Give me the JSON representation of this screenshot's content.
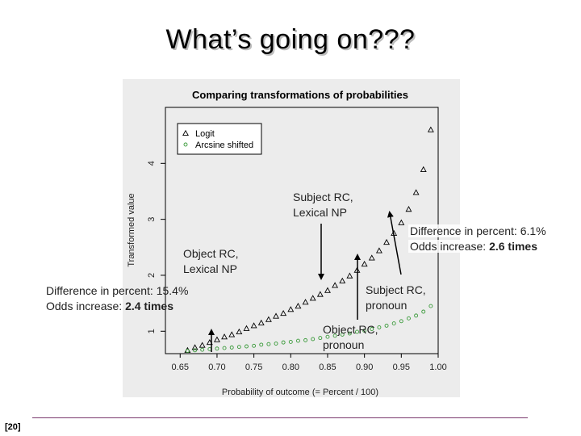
{
  "slide": {
    "title": "What’s going on???",
    "page_number": "[20]"
  },
  "chart_data": {
    "type": "scatter",
    "title": "Comparing transformations of probabilities",
    "xlabel": "Probability of outcome (= Percent / 100)",
    "ylabel": "Transformed value",
    "xlim": [
      0.63,
      1.0
    ],
    "ylim": [
      0.6,
      5.0
    ],
    "x_ticks": [
      "0.65",
      "0.70",
      "0.75",
      "0.80",
      "0.85",
      "0.90",
      "0.95",
      "1.00"
    ],
    "y_ticks": [
      "1",
      "2",
      "3",
      "4"
    ],
    "legend": {
      "position": "top-left",
      "entries": [
        "Logit",
        "Arcsine shifted"
      ]
    },
    "grid": false,
    "series": [
      {
        "name": "Logit",
        "marker": "triangle",
        "color": "#000000",
        "x": [
          0.66,
          0.67,
          0.68,
          0.69,
          0.7,
          0.71,
          0.72,
          0.73,
          0.74,
          0.75,
          0.76,
          0.77,
          0.78,
          0.79,
          0.8,
          0.81,
          0.82,
          0.83,
          0.84,
          0.85,
          0.86,
          0.87,
          0.88,
          0.89,
          0.9,
          0.91,
          0.92,
          0.93,
          0.94,
          0.95,
          0.96,
          0.97,
          0.98,
          0.99
        ],
        "y": [
          0.66,
          0.71,
          0.75,
          0.8,
          0.85,
          0.9,
          0.94,
          0.99,
          1.05,
          1.1,
          1.15,
          1.21,
          1.27,
          1.32,
          1.39,
          1.45,
          1.52,
          1.59,
          1.66,
          1.73,
          1.82,
          1.9,
          1.99,
          2.09,
          2.2,
          2.31,
          2.44,
          2.59,
          2.75,
          2.94,
          3.18,
          3.48,
          3.89,
          4.6
        ]
      },
      {
        "name": "Arcsine shifted",
        "marker": "circle",
        "color": "#3a9a3a",
        "x": [
          0.66,
          0.67,
          0.68,
          0.69,
          0.7,
          0.71,
          0.72,
          0.73,
          0.74,
          0.75,
          0.76,
          0.77,
          0.78,
          0.79,
          0.8,
          0.81,
          0.82,
          0.83,
          0.84,
          0.85,
          0.86,
          0.87,
          0.88,
          0.89,
          0.9,
          0.91,
          0.92,
          0.93,
          0.94,
          0.95,
          0.96,
          0.97,
          0.98,
          0.99
        ],
        "y": [
          0.65,
          0.66,
          0.67,
          0.68,
          0.69,
          0.7,
          0.71,
          0.72,
          0.73,
          0.74,
          0.76,
          0.77,
          0.78,
          0.8,
          0.81,
          0.83,
          0.84,
          0.86,
          0.88,
          0.9,
          0.92,
          0.94,
          0.96,
          0.99,
          1.01,
          1.04,
          1.07,
          1.1,
          1.14,
          1.18,
          1.23,
          1.28,
          1.35,
          1.45
        ]
      }
    ]
  },
  "annotations": {
    "subject_rc_lexical_np": "Subject RC,\nLexical NP",
    "object_rc_lexical_np": "Object RC,\nLexical NP",
    "subject_rc_pronoun": "Subject RC,\npronoun",
    "object_rc_pronoun": "Object RC,\npronoun",
    "right_diff_label": "Difference in percent: 6.1%",
    "right_odds_label": "Odds increase:",
    "right_odds_value": "2.6 times",
    "left_diff_label": "Difference in percent: 15.4%",
    "left_odds_label": "Odds increase:",
    "left_odds_value": "2.4 times"
  },
  "colors": {
    "chart_background": "#ececec",
    "arrow": "#000000",
    "footer_rule": "#7a3a6e"
  }
}
